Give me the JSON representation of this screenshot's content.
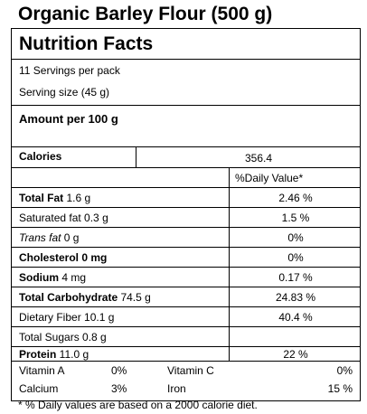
{
  "product": {
    "title": "Organic Barley Flour  (500 g)"
  },
  "label": {
    "title": "Nutrition Facts",
    "servings_per_pack": "11  Servings per pack",
    "serving_size": "Serving size  (45 g)",
    "amount_per": "Amount per 100 g",
    "calories_label": "Calories",
    "calories_value": "356.4",
    "daily_value_header": "%Daily Value*",
    "nutrients": [
      {
        "name": "Total Fat",
        "amount": " 1.6  g",
        "dv": "2.46  %"
      },
      {
        "name": "Saturated fat",
        "amount": " 0.3 g",
        "dv": "1.5 %"
      },
      {
        "name": "Trans fat",
        "amount": "  0 g",
        "dv": "0%"
      },
      {
        "name": "Cholesterol",
        "amount": "  0 mg",
        "dv": "0%"
      },
      {
        "name": "Sodium",
        "amount": "  4  mg",
        "dv": "0.17  %"
      },
      {
        "name": "Total Carbohydrate",
        "amount": " 74.5  g",
        "dv": "24.83 %"
      },
      {
        "name": "Dietary Fiber",
        "amount": "  10.1  g",
        "dv": "40.4 %"
      },
      {
        "name": "Total Sugars",
        "amount": " 0.8  g",
        "dv": ""
      },
      {
        "name": "Protein",
        "amount": "  11.0  g",
        "dv": "22 %"
      }
    ],
    "vitamins": [
      {
        "name": "Vitamin A",
        "value": "0%"
      },
      {
        "name": "Vitamin C",
        "value": "0%"
      },
      {
        "name": "Calcium",
        "value": "3%"
      },
      {
        "name": "Iron",
        "value": "15 %"
      }
    ],
    "footnote": "* % Daily values are based on a 2000 calorie diet."
  }
}
